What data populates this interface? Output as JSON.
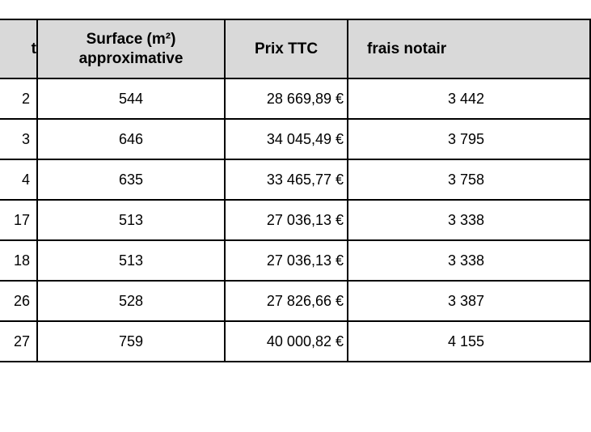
{
  "table": {
    "headers": {
      "lot": "t",
      "surface": "Surface (m²) approximative",
      "prix": "Prix TTC",
      "frais": "frais notair"
    },
    "rows": [
      {
        "lot": "2",
        "surface": "544",
        "prix": "28 669,89 €",
        "frais": "3 442"
      },
      {
        "lot": "3",
        "surface": "646",
        "prix": "34 045,49 €",
        "frais": "3 795"
      },
      {
        "lot": "4",
        "surface": "635",
        "prix": "33 465,77 €",
        "frais": "3 758"
      },
      {
        "lot": "17",
        "surface": "513",
        "prix": "27 036,13 €",
        "frais": "3 338"
      },
      {
        "lot": "18",
        "surface": "513",
        "prix": "27 036,13 €",
        "frais": "3 338"
      },
      {
        "lot": "26",
        "surface": "528",
        "prix": "27 826,66 €",
        "frais": "3 387"
      },
      {
        "lot": "27",
        "surface": "759",
        "prix": "40 000,82 €",
        "frais": "4 155"
      }
    ]
  }
}
